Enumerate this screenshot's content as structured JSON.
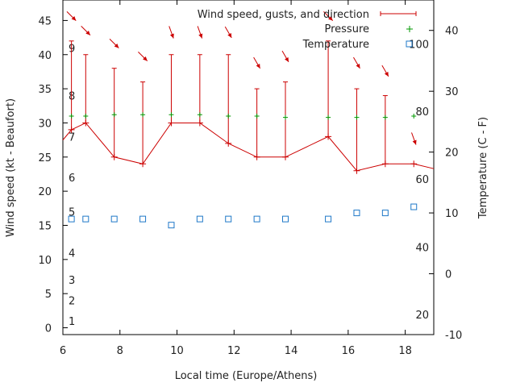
{
  "chart_data": {
    "type": "line",
    "title": "",
    "xlabel": "Local time (Europe/Athens)",
    "ylabel_left": "Wind speed (kt - Beaufort)",
    "ylabel_right": "Temperature (C - F)",
    "xlim": [
      6,
      19
    ],
    "ylim_left": [
      -1,
      48
    ],
    "ylim_right": [
      -10,
      45
    ],
    "x_ticks": [
      6,
      8,
      10,
      12,
      14,
      16,
      18
    ],
    "y_ticks_left": [
      0,
      5,
      10,
      15,
      20,
      25,
      30,
      35,
      40,
      45
    ],
    "y_ticks_right": [
      -10,
      0,
      10,
      20,
      30,
      40
    ],
    "beaufort_labels": [
      {
        "text": "1",
        "at_kt": 1
      },
      {
        "text": "2",
        "at_kt": 4
      },
      {
        "text": "3",
        "at_kt": 7
      },
      {
        "text": "4",
        "at_kt": 11
      },
      {
        "text": "5",
        "at_kt": 17
      },
      {
        "text": "6",
        "at_kt": 22
      },
      {
        "text": "7",
        "at_kt": 28
      },
      {
        "text": "8",
        "at_kt": 34
      },
      {
        "text": "9",
        "at_kt": 41
      }
    ],
    "fahrenheit_labels": [
      {
        "text": "20",
        "at_c": -6.7
      },
      {
        "text": "40",
        "at_c": 4.4
      },
      {
        "text": "60",
        "at_c": 15.6
      },
      {
        "text": "80",
        "at_c": 26.7
      },
      {
        "text": "100",
        "at_c": 37.8
      }
    ],
    "legend": [
      {
        "label": "Wind speed, gusts, and direction",
        "color": "#cc0000"
      },
      {
        "label": "Pressure",
        "color": "#009900"
      },
      {
        "label": "Temperature",
        "color": "#1f78c8"
      }
    ],
    "x": [
      6.3,
      6.8,
      7.8,
      8.8,
      9.8,
      10.8,
      11.8,
      12.8,
      13.8,
      15.3,
      16.3,
      17.3,
      18.3
    ],
    "series": [
      {
        "name": "Wind speed, gusts, and direction",
        "axis": "left",
        "values": [
          29,
          30,
          25,
          24,
          30,
          30,
          27,
          25,
          25,
          28,
          23,
          24,
          24
        ],
        "gusts": [
          42,
          40,
          38,
          36,
          40,
          40,
          40,
          35,
          36,
          42,
          35,
          34,
          0
        ],
        "direction_deg": [
          315,
          315,
          315,
          315,
          340,
          340,
          330,
          330,
          330,
          315,
          330,
          330,
          340
        ]
      },
      {
        "name": "Pressure",
        "axis": "left",
        "values": [
          31,
          31,
          31.2,
          31.2,
          31.2,
          31.2,
          31,
          31,
          30.8,
          30.8,
          30.8,
          30.8,
          31
        ]
      },
      {
        "name": "Temperature",
        "axis": "right",
        "values": [
          9,
          9,
          9,
          9,
          8,
          9,
          9,
          9,
          9,
          9,
          10,
          10,
          11
        ]
      }
    ],
    "wind_line_start": 27.5,
    "wind_line_end": 23.3,
    "grid": false,
    "legend_position": "top-right"
  }
}
